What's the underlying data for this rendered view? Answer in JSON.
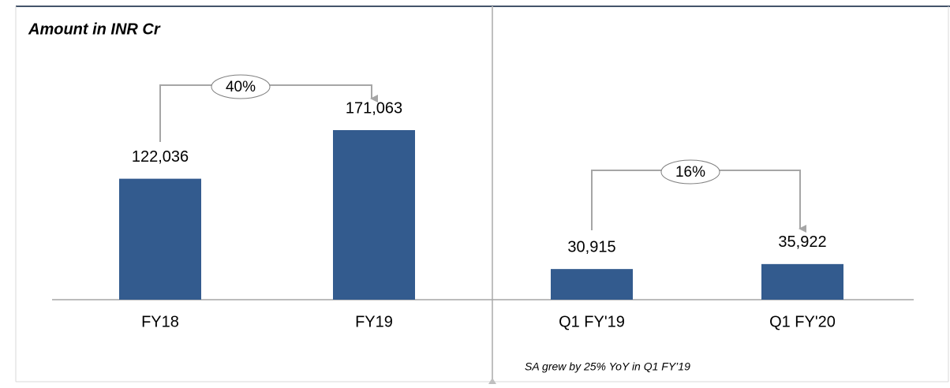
{
  "title": "Amount in INR Cr",
  "note": "SA grew by 25% YoY in Q1  FY’19",
  "chart_data": [
    {
      "type": "bar",
      "categories": [
        "FY18",
        "FY19"
      ],
      "values": [
        122036,
        171063
      ],
      "value_labels": [
        "122,036",
        "171,063"
      ],
      "color": "#335b8e",
      "annotation": "40%"
    },
    {
      "type": "bar",
      "categories": [
        "Q1 FY'19",
        "Q1 FY'20"
      ],
      "values": [
        30915,
        35922
      ],
      "value_labels": [
        "30,915",
        "35,922"
      ],
      "color": "#335b8e",
      "annotation": "16%"
    }
  ]
}
